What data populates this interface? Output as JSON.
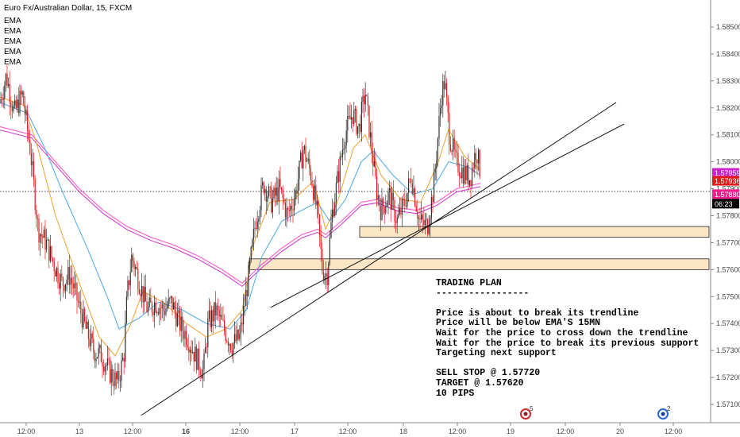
{
  "header": {
    "symbol_title": "Euro Fx/Australian Dollar, 15, FXCM",
    "indicators": [
      "EMA",
      "EMA",
      "EMA",
      "EMA",
      "EMA"
    ]
  },
  "colors": {
    "bull_candle": "#333333",
    "bear_candle": "#e01b1b",
    "ema_1": "#f0a030",
    "ema_2": "#4aa8e8",
    "ema_3": "#cc33cc",
    "ema_4": "#ff66cc",
    "ema_5": "#9966cc",
    "zone_fill": "#fbe6c6",
    "price_tag_current": "#cc22cc",
    "price_tag_last": "#ff1a8c",
    "price_tag_other": "#e31a1a"
  },
  "chart_data": {
    "type": "candlestick",
    "x_ticks": [
      "12:00",
      "13",
      "12:00",
      "16",
      "12:00",
      "17",
      "12:00",
      "18",
      "12:00",
      "19",
      "12:00",
      "20",
      "12:00"
    ],
    "y_ticks": [
      "1.58500",
      "1.58400",
      "1.58300",
      "1.58200",
      "1.58100",
      "1.58000",
      "1.57900",
      "1.57800",
      "1.57700",
      "1.57600",
      "1.57500",
      "1.57400",
      "1.57300",
      "1.57200",
      "1.57100"
    ],
    "ylim": [
      1.5705,
      1.5855
    ],
    "price_labels": [
      {
        "text": "1.57959",
        "value": 1.57959,
        "color": "#cc22cc"
      },
      {
        "text": "1.57936",
        "value": 1.57936,
        "color": "#e31a1a"
      },
      {
        "text": "1.57880",
        "value": 1.5788,
        "color": "#ff1a8c"
      },
      {
        "text": "06:23",
        "value": 1.5786,
        "color": "#000000"
      }
    ],
    "dotted_line_value": 1.5789,
    "price_path": [
      [
        1.5822,
        0
      ],
      [
        1.5832,
        8
      ],
      [
        1.5818,
        18
      ],
      [
        1.5825,
        28
      ],
      [
        1.5805,
        38
      ],
      [
        1.5775,
        48
      ],
      [
        1.577,
        58
      ],
      [
        1.5762,
        68
      ],
      [
        1.5755,
        78
      ],
      [
        1.5758,
        88
      ],
      [
        1.5748,
        98
      ],
      [
        1.5738,
        108
      ],
      [
        1.573,
        118
      ],
      [
        1.5728,
        128
      ],
      [
        1.5722,
        138
      ],
      [
        1.5718,
        148
      ],
      [
        1.5728,
        156
      ],
      [
        1.575,
        160
      ],
      [
        1.5765,
        166
      ],
      [
        1.5755,
        176
      ],
      [
        1.5745,
        186
      ],
      [
        1.5748,
        196
      ],
      [
        1.5745,
        206
      ],
      [
        1.5748,
        216
      ],
      [
        1.574,
        226
      ],
      [
        1.5735,
        236
      ],
      [
        1.5728,
        246
      ],
      [
        1.5722,
        256
      ],
      [
        1.574,
        262
      ],
      [
        1.5745,
        272
      ],
      [
        1.5738,
        282
      ],
      [
        1.5732,
        292
      ],
      [
        1.5735,
        302
      ],
      [
        1.5755,
        312
      ],
      [
        1.5778,
        322
      ],
      [
        1.5792,
        332
      ],
      [
        1.5785,
        342
      ],
      [
        1.579,
        352
      ],
      [
        1.578,
        362
      ],
      [
        1.5788,
        372
      ],
      [
        1.5805,
        382
      ],
      [
        1.5795,
        392
      ],
      [
        1.578,
        400
      ],
      [
        1.576,
        406
      ],
      [
        1.5758,
        412
      ],
      [
        1.578,
        418
      ],
      [
        1.5795,
        426
      ],
      [
        1.581,
        434
      ],
      [
        1.5818,
        444
      ],
      [
        1.5812,
        452
      ],
      [
        1.5826,
        460
      ],
      [
        1.581,
        466
      ],
      [
        1.579,
        474
      ],
      [
        1.5782,
        480
      ],
      [
        1.5788,
        490
      ],
      [
        1.5778,
        500
      ],
      [
        1.5785,
        510
      ],
      [
        1.5795,
        518
      ],
      [
        1.5778,
        528
      ],
      [
        1.5776,
        538
      ],
      [
        1.579,
        546
      ],
      [
        1.5825,
        556
      ],
      [
        1.583,
        560
      ],
      [
        1.581,
        566
      ],
      [
        1.58,
        574
      ],
      [
        1.5796,
        584
      ],
      [
        1.5794,
        592
      ],
      [
        1.5805,
        600
      ],
      [
        1.5794,
        606
      ]
    ],
    "ema_fast_path": [
      [
        1.5824,
        0
      ],
      [
        1.5821,
        30
      ],
      [
        1.5808,
        45
      ],
      [
        1.578,
        70
      ],
      [
        1.5755,
        100
      ],
      [
        1.5735,
        125
      ],
      [
        1.5728,
        145
      ],
      [
        1.574,
        165
      ],
      [
        1.5752,
        180
      ],
      [
        1.5748,
        205
      ],
      [
        1.574,
        235
      ],
      [
        1.5735,
        260
      ],
      [
        1.5738,
        285
      ],
      [
        1.5745,
        305
      ],
      [
        1.577,
        320
      ],
      [
        1.5785,
        340
      ],
      [
        1.5786,
        370
      ],
      [
        1.5793,
        395
      ],
      [
        1.5775,
        410
      ],
      [
        1.5785,
        425
      ],
      [
        1.5805,
        445
      ],
      [
        1.581,
        460
      ],
      [
        1.5795,
        480
      ],
      [
        1.5786,
        505
      ],
      [
        1.5785,
        530
      ],
      [
        1.58,
        552
      ],
      [
        1.5812,
        565
      ],
      [
        1.5802,
        585
      ],
      [
        1.5797,
        605
      ]
    ],
    "ema_mid_path": [
      [
        1.5822,
        0
      ],
      [
        1.5818,
        35
      ],
      [
        1.5806,
        55
      ],
      [
        1.5788,
        80
      ],
      [
        1.5768,
        110
      ],
      [
        1.575,
        135
      ],
      [
        1.5738,
        150
      ],
      [
        1.5742,
        175
      ],
      [
        1.5748,
        200
      ],
      [
        1.5745,
        230
      ],
      [
        1.574,
        260
      ],
      [
        1.5738,
        290
      ],
      [
        1.5745,
        310
      ],
      [
        1.5765,
        330
      ],
      [
        1.5778,
        355
      ],
      [
        1.5782,
        380
      ],
      [
        1.5785,
        400
      ],
      [
        1.5778,
        415
      ],
      [
        1.5786,
        435
      ],
      [
        1.58,
        455
      ],
      [
        1.5804,
        470
      ],
      [
        1.5795,
        495
      ],
      [
        1.5788,
        520
      ],
      [
        1.579,
        545
      ],
      [
        1.58,
        565
      ],
      [
        1.5798,
        590
      ],
      [
        1.5795,
        605
      ]
    ],
    "ema_slow_path": [
      [
        1.5813,
        0
      ],
      [
        1.581,
        40
      ],
      [
        1.58,
        70
      ],
      [
        1.579,
        100
      ],
      [
        1.5782,
        130
      ],
      [
        1.5776,
        160
      ],
      [
        1.5772,
        190
      ],
      [
        1.5769,
        220
      ],
      [
        1.5765,
        250
      ],
      [
        1.576,
        280
      ],
      [
        1.5755,
        305
      ],
      [
        1.5762,
        330
      ],
      [
        1.5768,
        355
      ],
      [
        1.5773,
        380
      ],
      [
        1.5775,
        400
      ],
      [
        1.5773,
        410
      ],
      [
        1.5778,
        430
      ],
      [
        1.5785,
        455
      ],
      [
        1.5786,
        475
      ],
      [
        1.5783,
        500
      ],
      [
        1.5782,
        525
      ],
      [
        1.5785,
        550
      ],
      [
        1.579,
        575
      ],
      [
        1.5792,
        605
      ]
    ],
    "zones": [
      {
        "from": 1.5772,
        "to": 1.5776,
        "x_start": 453
      },
      {
        "from": 1.576,
        "to": 1.5764,
        "x_start": 314
      }
    ],
    "trendlines": [
      {
        "x1": 178,
        "y1": 1.5706,
        "x2": 776,
        "y2": 1.5822
      },
      {
        "x1": 341,
        "y1": 1.5746,
        "x2": 786,
        "y2": 1.5814
      }
    ],
    "events": [
      {
        "label": "5",
        "x": 662
      },
      {
        "label": "2",
        "x": 835
      }
    ]
  },
  "trading_plan": {
    "title": "TRADING PLAN",
    "divider": "-----------------",
    "lines": [
      "Price is about to break its trendline",
      "Price will be below EMA'S 15MN",
      "Wait for the price to cross down the trendline",
      "Wait for the price to break its previous support",
      "Targeting next support"
    ],
    "orders": [
      "SELL STOP @ 1.57720",
      "TARGET @ 1.57620",
      "10 PIPS"
    ]
  }
}
